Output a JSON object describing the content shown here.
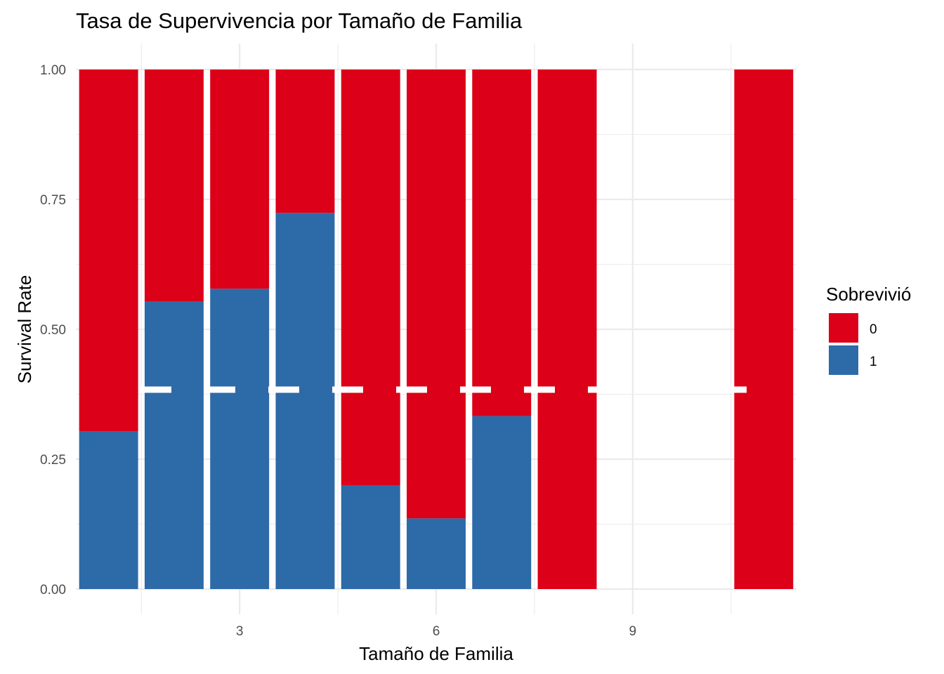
{
  "chart_data": {
    "type": "bar",
    "stacked": true,
    "title": "Tasa de Supervivencia por Tamaño de Familia",
    "xlabel": "Tamaño de Familia",
    "ylabel": "Survival Rate",
    "x": [
      1,
      2,
      3,
      4,
      5,
      6,
      7,
      8,
      11
    ],
    "xticks": [
      "3",
      "6",
      "9"
    ],
    "yticks": [
      "0.00",
      "0.25",
      "0.50",
      "0.75",
      "1.00"
    ],
    "xlim": [
      0.5,
      11.5
    ],
    "ylim": [
      0,
      1
    ],
    "grid": true,
    "legend": {
      "title": "Sobrevivió",
      "placement": "right",
      "entries": [
        "0",
        "1"
      ]
    },
    "series": [
      {
        "name": "0",
        "color": "#DC0018",
        "values": [
          0.696,
          0.447,
          0.422,
          0.276,
          0.8,
          0.864,
          0.667,
          1.0,
          1.0
        ]
      },
      {
        "name": "1",
        "color": "#2D6AA8",
        "values": [
          0.304,
          0.553,
          0.578,
          0.724,
          0.2,
          0.136,
          0.333,
          0.0,
          0.0
        ]
      }
    ],
    "reference_line": {
      "y": 0.3838,
      "style": "dashed",
      "color": "#ffffff"
    }
  }
}
